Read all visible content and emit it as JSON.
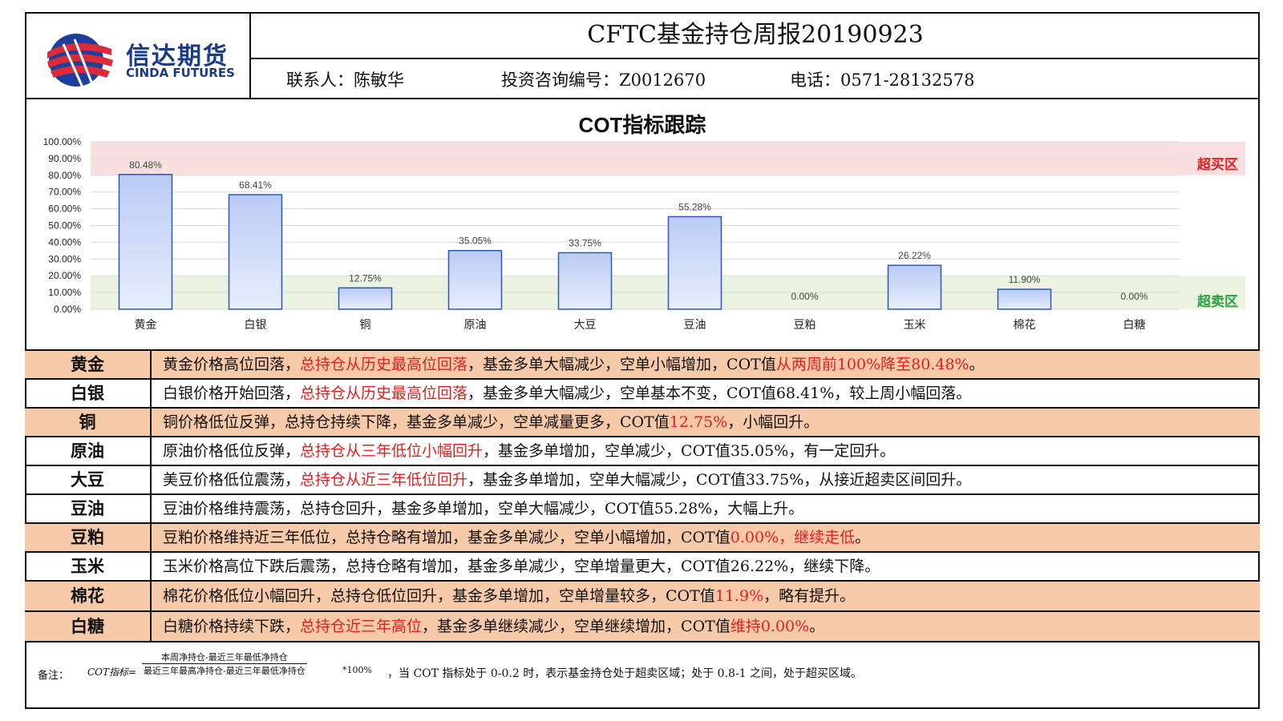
{
  "header": {
    "title": "CFTC基金持仓周报20190923",
    "contact": "联系人：陈敏华",
    "license": "投资咨询编号：Z0012670",
    "phone": "电话：0571-28132578",
    "logo_cn": "信达期货",
    "logo_en": "CINDA FUTURES"
  },
  "colors": {
    "bar_fill_top": "#b9cbf4",
    "bar_fill_bottom": "#e8eefc",
    "bar_stroke": "#2f55b8",
    "overbought_zone": "#f8e0e0",
    "oversold_zone": "#eaf3df",
    "overbought_text": "#e02020",
    "oversold_text": "#2aa040",
    "highlight_row": "#f6c9a9"
  },
  "chart_data": {
    "type": "bar",
    "title": "COT指标跟踪",
    "categories": [
      "黄金",
      "白银",
      "铜",
      "原油",
      "大豆",
      "豆油",
      "豆粕",
      "玉米",
      "棉花",
      "白糖"
    ],
    "values": [
      80.48,
      68.41,
      12.75,
      35.05,
      33.75,
      55.28,
      0.0,
      26.22,
      11.9,
      0.0
    ],
    "value_labels": [
      "80.48%",
      "68.41%",
      "12.75%",
      "35.05%",
      "33.75%",
      "55.28%",
      "0.00%",
      "26.22%",
      "11.90%",
      "0.00%"
    ],
    "ylim": [
      0,
      100
    ],
    "yticks": [
      "0.00%",
      "10.00%",
      "20.00%",
      "30.00%",
      "40.00%",
      "50.00%",
      "60.00%",
      "70.00%",
      "80.00%",
      "90.00%",
      "100.00%"
    ],
    "zones": [
      {
        "label": "超买区",
        "range": [
          80,
          100
        ]
      },
      {
        "label": "超卖区",
        "range": [
          0,
          20
        ]
      }
    ],
    "grid": true
  },
  "table": [
    {
      "name": "黄金",
      "highlight": true,
      "parts": [
        [
          "黄金价格高位回落，",
          false
        ],
        [
          "总持仓从历史最高位回落",
          true
        ],
        [
          "，基金多单大幅减少，空单小幅增加，COT值",
          false
        ],
        [
          "从两周前100%降至80.48%",
          true
        ],
        [
          "。",
          false
        ]
      ]
    },
    {
      "name": "白银",
      "highlight": false,
      "parts": [
        [
          "白银价格开始回落，",
          false
        ],
        [
          "总持仓从历史最高位回落",
          true
        ],
        [
          "，基金多单大幅减少，空单基本不变，COT值68.41%，较上周小幅回落。",
          false
        ]
      ]
    },
    {
      "name": "铜",
      "highlight": true,
      "parts": [
        [
          "铜价格低位反弹，总持仓持续下降，基金多单减少，空单减量更多，COT值",
          false
        ],
        [
          "12.75%",
          true
        ],
        [
          "，小幅回升。",
          false
        ]
      ]
    },
    {
      "name": "原油",
      "highlight": false,
      "parts": [
        [
          "原油价格低位反弹，",
          false
        ],
        [
          "总持仓从三年低位小幅回升",
          true
        ],
        [
          "，基金多单增加，空单减少，COT值35.05%，有一定回升。",
          false
        ]
      ]
    },
    {
      "name": "大豆",
      "highlight": false,
      "parts": [
        [
          "美豆价格低位震荡，",
          false
        ],
        [
          "总持仓从近三年低位回升",
          true
        ],
        [
          "，基金多单增加，空单大幅减少，COT值33.75%，从接近超卖区间回升。",
          false
        ]
      ]
    },
    {
      "name": "豆油",
      "highlight": false,
      "parts": [
        [
          "豆油价格维持震荡，总持仓回升，基金多单增加，空单大幅减少，COT值55.28%，大幅上升。",
          false
        ]
      ]
    },
    {
      "name": "豆粕",
      "highlight": true,
      "parts": [
        [
          "豆粕价格维持近三年低位，总持仓略有增加，基金多单减少，空单小幅增加，COT值",
          false
        ],
        [
          "0.00%，继续走低",
          true
        ],
        [
          "。",
          false
        ]
      ]
    },
    {
      "name": "玉米",
      "highlight": false,
      "parts": [
        [
          "玉米价格高位下跌后震荡，总持仓略有增加，基金多单减少，空单增量更大，COT值26.22%，继续下降。",
          false
        ]
      ]
    },
    {
      "name": "棉花",
      "highlight": true,
      "parts": [
        [
          "棉花价格低位小幅回升，总持仓低位回升，基金多单增加，空单增量较多，COT值",
          false
        ],
        [
          "11.9%",
          true
        ],
        [
          "，略有提升。",
          false
        ]
      ]
    },
    {
      "name": "白糖",
      "highlight": true,
      "parts": [
        [
          "白糖价格持续下跌，",
          false
        ],
        [
          "总持仓近三年高位",
          true
        ],
        [
          "，基金多单继续减少，空单继续增加，COT值",
          false
        ],
        [
          "维持0.00%",
          true
        ],
        [
          "。",
          false
        ]
      ]
    }
  ],
  "note": {
    "label": "备注：",
    "formula_prefix": "COT指标=",
    "numerator": "本周净持仓-最近三年最低净持仓",
    "denominator": "最近三年最高净持仓-最近三年最低净持仓",
    "multiplier": "*100%",
    "text": "，当 COT 指标处于 0-0.2 时，表示基金持仓处于超卖区域；处于 0.8-1 之间，处于超买区域。"
  }
}
